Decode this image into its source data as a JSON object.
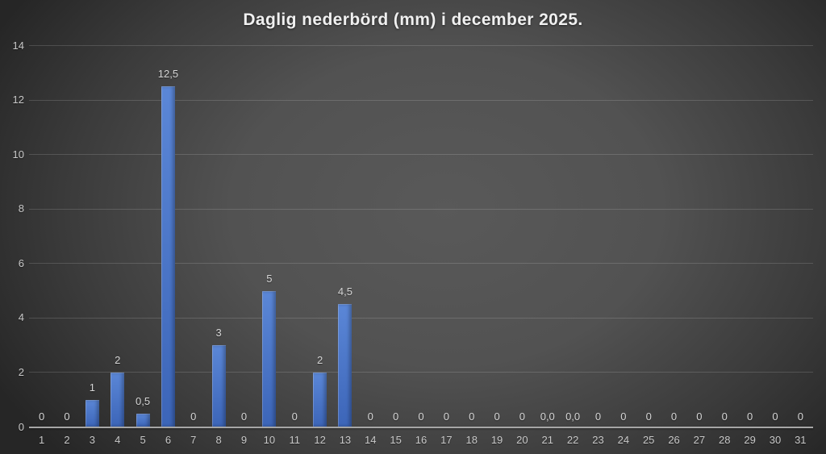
{
  "title": "Daglig nederbörd (mm) i december 2025.",
  "colors": {
    "background_center": "#595959",
    "background_edge": "#262626",
    "bar_top": "#5b87d7",
    "bar_bottom": "#3c65b8",
    "gridline": "rgba(255,255,255,0.15)",
    "axis_line": "#a6a6a6",
    "title_text": "#f0f0f0",
    "tick_text": "#c9c9c9",
    "data_label_text": "#d6d6d6"
  },
  "chart_data": {
    "type": "bar",
    "title": "Daglig nederbörd (mm) i december 2025.",
    "categories": [
      "1",
      "2",
      "3",
      "4",
      "5",
      "6",
      "7",
      "8",
      "9",
      "10",
      "11",
      "12",
      "13",
      "14",
      "15",
      "16",
      "17",
      "18",
      "19",
      "20",
      "21",
      "22",
      "23",
      "24",
      "25",
      "26",
      "27",
      "28",
      "29",
      "30",
      "31"
    ],
    "values": [
      0,
      0,
      1,
      2,
      0.5,
      12.5,
      0,
      3,
      0,
      5,
      0,
      2,
      4.5,
      0,
      0,
      0,
      0,
      0,
      0,
      0,
      0,
      0,
      0,
      0,
      0,
      0,
      0,
      0,
      0,
      0,
      0
    ],
    "data_labels": [
      "0",
      "0",
      "1",
      "2",
      "0,5",
      "12,5",
      "0",
      "3",
      "0",
      "5",
      "0",
      "2",
      "4,5",
      "0",
      "0",
      "0",
      "0",
      "0",
      "0",
      "0",
      "0,0",
      "0,0",
      "0",
      "0",
      "0",
      "0",
      "0",
      "0",
      "0",
      "0",
      "0"
    ],
    "xlabel": "",
    "ylabel": "",
    "ylim": [
      0,
      14
    ],
    "yticks": [
      0,
      2,
      4,
      6,
      8,
      10,
      12,
      14
    ],
    "grid": true,
    "legend_position": "none",
    "bar_color": "#4472c4"
  }
}
